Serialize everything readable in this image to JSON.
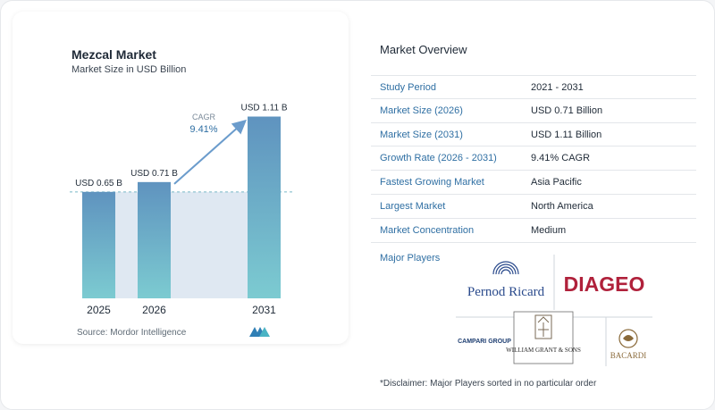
{
  "chart_data": {
    "type": "bar",
    "title": "Mezcal Market",
    "subtitle": "Market Size in USD Billion",
    "categories": [
      "2025",
      "2026",
      "2031"
    ],
    "values": [
      0.65,
      0.71,
      1.11
    ],
    "data_labels": [
      "USD 0.65 B",
      "USD 0.71 B",
      "USD 1.11 B"
    ],
    "ylim": [
      0,
      1.2
    ],
    "cagr_label": "CAGR",
    "cagr_value": "9.41%",
    "grid": false,
    "colors": {
      "bar_top": "#5f93bf",
      "bar_bottom": "#7ccbd1",
      "band": "#dfe8f2",
      "arrow": "#6b9ccc",
      "dashed": "#79b8c6"
    }
  },
  "source_text": "Source:  Mordor Intelligence",
  "overview": {
    "title": "Market Overview",
    "rows": [
      {
        "label": "Study Period",
        "value": "2021 - 2031"
      },
      {
        "label": "Market Size (2026)",
        "value": "USD 0.71 Billion"
      },
      {
        "label": "Market Size (2031)",
        "value": "USD 1.11 Billion"
      },
      {
        "label": "Growth Rate (2026 - 2031)",
        "value": "9.41% CAGR"
      },
      {
        "label": "Fastest Growing Market",
        "value": "Asia Pacific"
      },
      {
        "label": "Largest Market",
        "value": "North America"
      },
      {
        "label": "Market Concentration",
        "value": "Medium"
      }
    ]
  },
  "players": {
    "label": "Major Players",
    "logos": [
      "Pernod Ricard",
      "DIAGEO",
      "CAMPARI GROUP",
      "WILLIAM GRANT & SONS",
      "BACARDI"
    ]
  },
  "disclaimer": "*Disclaimer: Major Players sorted in no particular order"
}
